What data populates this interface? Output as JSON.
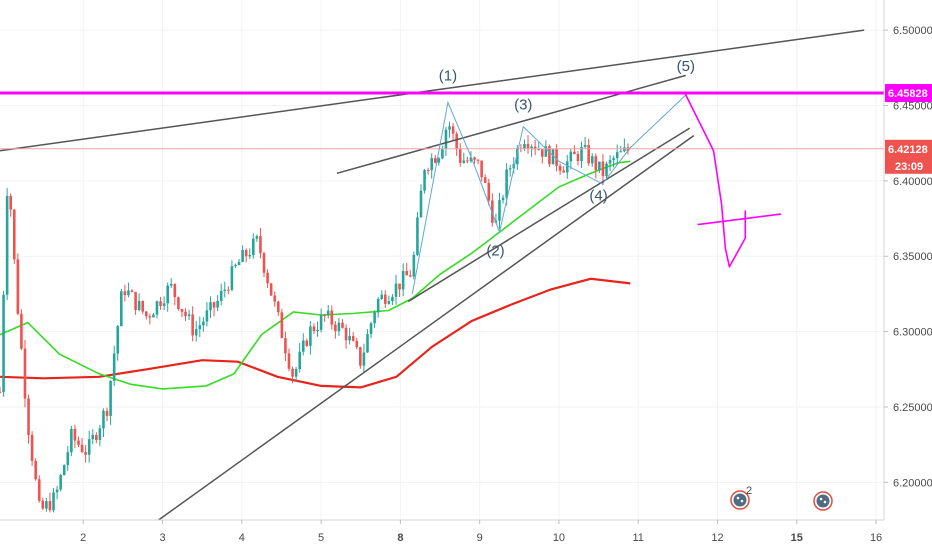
{
  "chart_data": {
    "type": "candlestick",
    "colors": {
      "up": "#26a69a",
      "down": "#ef5350",
      "ma_fast": "#33dd22",
      "ma_slow": "#e8241a",
      "resistance": "#ff00ff",
      "trendline": "#555555",
      "wave_path": "#5fa8d6",
      "projection": "#ff00ff",
      "current_price_tag": "#ef5350"
    },
    "x_ticks": [
      {
        "label": "2",
        "day": 2,
        "bold": false
      },
      {
        "label": "3",
        "day": 3,
        "bold": false
      },
      {
        "label": "4",
        "day": 4,
        "bold": false
      },
      {
        "label": "5",
        "day": 5,
        "bold": false
      },
      {
        "label": "8",
        "day": 6,
        "bold": true
      },
      {
        "label": "9",
        "day": 7,
        "bold": false
      },
      {
        "label": "10",
        "day": 8,
        "bold": false
      },
      {
        "label": "11",
        "day": 9,
        "bold": false
      },
      {
        "label": "12",
        "day": 10,
        "bold": false
      },
      {
        "label": "15",
        "day": 11,
        "bold": true
      },
      {
        "label": "16",
        "day": 12,
        "bold": false
      }
    ],
    "y_ticks": [
      "6.50000",
      "6.45000",
      "6.40000",
      "6.35000",
      "6.30000",
      "6.25000",
      "6.20000"
    ],
    "y_range": [
      6.175,
      6.52
    ],
    "x_range": [
      0.95,
      12.1
    ],
    "resistance_level": {
      "value": 6.45828,
      "label": "6.45828"
    },
    "current_price": {
      "value": 6.42128,
      "label": "6.42128",
      "countdown": "23:09"
    },
    "wave_labels": [
      {
        "label": "(1)",
        "day": 6.6,
        "price": 6.4665
      },
      {
        "label": "(2)",
        "day": 7.2,
        "price": 6.3505
      },
      {
        "label": "(3)",
        "day": 7.55,
        "price": 6.4475
      },
      {
        "label": "(4)",
        "day": 8.5,
        "price": 6.387
      },
      {
        "label": "(5)",
        "day": 9.6,
        "price": 6.473
      }
    ],
    "wave_path": [
      {
        "day": 6.15,
        "price": 6.325
      },
      {
        "day": 6.6,
        "price": 6.452
      },
      {
        "day": 6.9,
        "price": 6.415
      },
      {
        "day": 7.25,
        "price": 6.366
      },
      {
        "day": 7.55,
        "price": 6.436
      },
      {
        "day": 8.0,
        "price": 6.413
      },
      {
        "day": 8.55,
        "price": 6.398
      },
      {
        "day": 8.9,
        "price": 6.422
      },
      {
        "day": 9.6,
        "price": 6.457
      }
    ],
    "trendlines": [
      {
        "from": {
          "day": 0.95,
          "price": 6.42
        },
        "to": {
          "day": 11.85,
          "price": 6.5
        }
      },
      {
        "from": {
          "day": 5.2,
          "price": 6.405
        },
        "to": {
          "day": 9.6,
          "price": 6.47
        }
      },
      {
        "from": {
          "day": 6.1,
          "price": 6.32
        },
        "to": {
          "day": 9.65,
          "price": 6.435
        }
      },
      {
        "from": {
          "day": 2.95,
          "price": 6.175
        },
        "to": {
          "day": 9.7,
          "price": 6.43
        }
      }
    ],
    "projection": [
      {
        "day": 9.6,
        "price": 6.457
      },
      {
        "day": 9.95,
        "price": 6.42
      },
      {
        "day": 10.05,
        "price": 6.385
      },
      {
        "day": 10.1,
        "price": 6.355
      },
      {
        "day": 10.15,
        "price": 6.343
      },
      {
        "day": 10.35,
        "price": 6.362
      },
      {
        "day": 10.35,
        "price": 6.38
      }
    ],
    "projection_cross": {
      "from": {
        "day": 9.75,
        "price": 6.371
      },
      "to": {
        "day": 10.8,
        "price": 6.378
      }
    },
    "ma_fast": [
      {
        "day": 0.95,
        "price": 6.298
      },
      {
        "day": 1.3,
        "price": 6.306
      },
      {
        "day": 1.7,
        "price": 6.285
      },
      {
        "day": 2.2,
        "price": 6.272
      },
      {
        "day": 2.6,
        "price": 6.265
      },
      {
        "day": 3.0,
        "price": 6.262
      },
      {
        "day": 3.55,
        "price": 6.264
      },
      {
        "day": 3.9,
        "price": 6.272
      },
      {
        "day": 4.25,
        "price": 6.298
      },
      {
        "day": 4.65,
        "price": 6.313
      },
      {
        "day": 5.0,
        "price": 6.311
      },
      {
        "day": 5.4,
        "price": 6.312
      },
      {
        "day": 5.85,
        "price": 6.314
      },
      {
        "day": 6.15,
        "price": 6.322
      },
      {
        "day": 6.5,
        "price": 6.338
      },
      {
        "day": 6.9,
        "price": 6.352
      },
      {
        "day": 7.25,
        "price": 6.366
      },
      {
        "day": 7.6,
        "price": 6.38
      },
      {
        "day": 8.0,
        "price": 6.396
      },
      {
        "day": 8.4,
        "price": 6.405
      },
      {
        "day": 8.75,
        "price": 6.412
      },
      {
        "day": 8.9,
        "price": 6.413
      }
    ],
    "ma_slow": [
      {
        "day": 0.95,
        "price": 6.27
      },
      {
        "day": 1.5,
        "price": 6.269
      },
      {
        "day": 2.2,
        "price": 6.27
      },
      {
        "day": 2.8,
        "price": 6.275
      },
      {
        "day": 3.5,
        "price": 6.281
      },
      {
        "day": 3.95,
        "price": 6.28
      },
      {
        "day": 4.45,
        "price": 6.27
      },
      {
        "day": 5.0,
        "price": 6.264
      },
      {
        "day": 5.5,
        "price": 6.263
      },
      {
        "day": 5.95,
        "price": 6.27
      },
      {
        "day": 6.4,
        "price": 6.29
      },
      {
        "day": 6.9,
        "price": 6.307
      },
      {
        "day": 7.4,
        "price": 6.318
      },
      {
        "day": 7.9,
        "price": 6.328
      },
      {
        "day": 8.4,
        "price": 6.335
      },
      {
        "day": 8.9,
        "price": 6.332
      }
    ],
    "price_path": [
      {
        "day": 0.95,
        "price": 6.26
      },
      {
        "day": 1.05,
        "price": 6.41
      },
      {
        "day": 1.15,
        "price": 6.33
      },
      {
        "day": 1.3,
        "price": 6.24
      },
      {
        "day": 1.45,
        "price": 6.18
      },
      {
        "day": 1.65,
        "price": 6.19
      },
      {
        "day": 1.85,
        "price": 6.23
      },
      {
        "day": 2.05,
        "price": 6.22
      },
      {
        "day": 2.3,
        "price": 6.25
      },
      {
        "day": 2.5,
        "price": 6.33
      },
      {
        "day": 2.8,
        "price": 6.31
      },
      {
        "day": 3.1,
        "price": 6.33
      },
      {
        "day": 3.4,
        "price": 6.3
      },
      {
        "day": 3.7,
        "price": 6.32
      },
      {
        "day": 3.95,
        "price": 6.345
      },
      {
        "day": 4.2,
        "price": 6.36
      },
      {
        "day": 4.45,
        "price": 6.31
      },
      {
        "day": 4.65,
        "price": 6.27
      },
      {
        "day": 4.85,
        "price": 6.3
      },
      {
        "day": 5.05,
        "price": 6.31
      },
      {
        "day": 5.3,
        "price": 6.3
      },
      {
        "day": 5.5,
        "price": 6.28
      },
      {
        "day": 5.7,
        "price": 6.32
      },
      {
        "day": 5.95,
        "price": 6.33
      },
      {
        "day": 6.15,
        "price": 6.34
      },
      {
        "day": 6.3,
        "price": 6.41
      },
      {
        "day": 6.5,
        "price": 6.42
      },
      {
        "day": 6.6,
        "price": 6.44
      },
      {
        "day": 6.75,
        "price": 6.415
      },
      {
        "day": 7.0,
        "price": 6.41
      },
      {
        "day": 7.2,
        "price": 6.37
      },
      {
        "day": 7.35,
        "price": 6.405
      },
      {
        "day": 7.55,
        "price": 6.43
      },
      {
        "day": 7.8,
        "price": 6.42
      },
      {
        "day": 8.05,
        "price": 6.41
      },
      {
        "day": 8.3,
        "price": 6.42
      },
      {
        "day": 8.55,
        "price": 6.405
      },
      {
        "day": 8.7,
        "price": 6.415
      },
      {
        "day": 8.9,
        "price": 6.421
      }
    ]
  }
}
